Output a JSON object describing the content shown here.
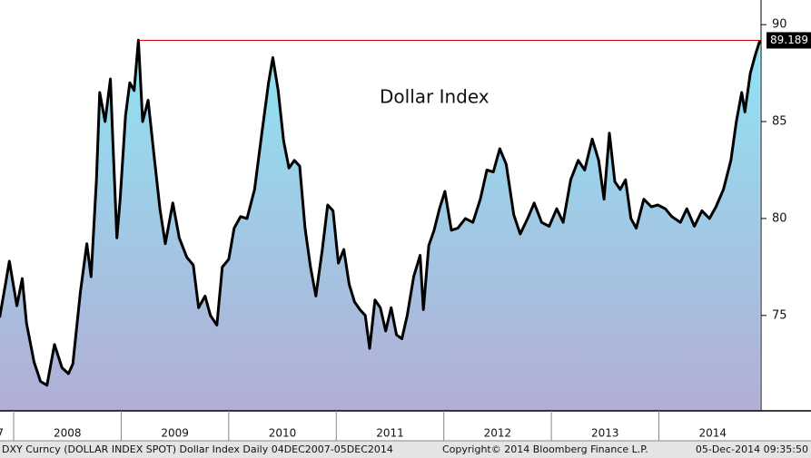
{
  "chart_data": {
    "type": "area",
    "title": "Dollar Index",
    "x": [
      2007.87,
      2007.92,
      2007.96,
      2008.03,
      2008.08,
      2008.12,
      2008.19,
      2008.25,
      2008.31,
      2008.38,
      2008.45,
      2008.51,
      2008.55,
      2008.62,
      2008.68,
      2008.72,
      2008.77,
      2008.8,
      2008.85,
      2008.9,
      2008.92,
      2008.96,
      2008.99,
      2009.04,
      2009.08,
      2009.12,
      2009.16,
      2009.2,
      2009.25,
      2009.31,
      2009.36,
      2009.41,
      2009.48,
      2009.54,
      2009.61,
      2009.67,
      2009.72,
      2009.78,
      2009.83,
      2009.89,
      2009.94,
      2010.0,
      2010.05,
      2010.11,
      2010.17,
      2010.24,
      2010.31,
      2010.37,
      2010.41,
      2010.46,
      2010.51,
      2010.56,
      2010.61,
      2010.66,
      2010.71,
      2010.76,
      2010.81,
      2010.87,
      2010.92,
      2010.97,
      2011.02,
      2011.07,
      2011.12,
      2011.17,
      2011.22,
      2011.27,
      2011.31,
      2011.36,
      2011.41,
      2011.46,
      2011.51,
      2011.56,
      2011.61,
      2011.66,
      2011.72,
      2011.78,
      2011.81,
      2011.86,
      2011.91,
      2011.96,
      2012.01,
      2012.07,
      2012.13,
      2012.2,
      2012.27,
      2012.34,
      2012.4,
      2012.46,
      2012.52,
      2012.58,
      2012.65,
      2012.71,
      2012.78,
      2012.84,
      2012.91,
      2012.98,
      2013.05,
      2013.11,
      2013.18,
      2013.25,
      2013.31,
      2013.38,
      2013.44,
      2013.49,
      2013.54,
      2013.59,
      2013.64,
      2013.69,
      2013.74,
      2013.79,
      2013.86,
      2013.93,
      2013.99,
      2014.06,
      2014.12,
      2014.2,
      2014.26,
      2014.33,
      2014.4,
      2014.47,
      2014.53,
      2014.6,
      2014.67,
      2014.72,
      2014.77,
      2014.8,
      2014.85,
      2014.9,
      2014.94
    ],
    "series": [
      {
        "name": "DXY Curncy",
        "color": "#000000",
        "values": [
          74.9,
          76.5,
          77.8,
          75.5,
          76.9,
          74.6,
          72.6,
          71.6,
          71.4,
          73.5,
          72.3,
          72.0,
          72.5,
          76.2,
          78.7,
          77.0,
          82.0,
          86.5,
          85.0,
          87.2,
          84.3,
          79.0,
          81.0,
          85.3,
          87.0,
          86.6,
          89.2,
          85.0,
          86.1,
          83.0,
          80.5,
          78.7,
          80.8,
          79.0,
          78.0,
          77.6,
          75.4,
          76.0,
          75.0,
          74.5,
          77.5,
          77.9,
          79.5,
          80.1,
          80.0,
          81.5,
          84.5,
          87.0,
          88.3,
          86.6,
          84.0,
          82.6,
          83.0,
          82.7,
          79.5,
          77.5,
          76.0,
          78.4,
          80.7,
          80.4,
          77.7,
          78.4,
          76.6,
          75.7,
          75.3,
          75.0,
          73.3,
          75.8,
          75.4,
          74.2,
          75.4,
          74.0,
          73.8,
          75.0,
          77.0,
          78.1,
          75.3,
          78.6,
          79.4,
          80.5,
          81.4,
          79.4,
          79.5,
          80.0,
          79.8,
          81.0,
          82.5,
          82.4,
          83.6,
          82.8,
          80.2,
          79.2,
          80.0,
          80.8,
          79.8,
          79.6,
          80.5,
          79.8,
          82.0,
          83.0,
          82.5,
          84.1,
          83.0,
          81.0,
          84.4,
          81.9,
          81.5,
          82.0,
          80.0,
          79.5,
          81.0,
          80.6,
          80.7,
          80.5,
          80.1,
          79.8,
          80.5,
          79.6,
          80.4,
          80.0,
          80.6,
          81.5,
          83.0,
          85.0,
          86.5,
          85.5,
          87.5,
          88.5,
          89.19
        ]
      }
    ],
    "last_value": 89.189,
    "xlim": [
      2007.873,
      2014.95
    ],
    "xticks": [
      {
        "value": 2007,
        "label": "7"
      },
      2008,
      2009,
      2010,
      2011,
      2012,
      2013,
      2014
    ],
    "ylim": [
      70.08,
      91.27
    ],
    "yticks": [
      75,
      80,
      85,
      90
    ],
    "footer": {
      "left": "DXY Curncy (DOLLAR INDEX SPOT) Dollar Index  Daily 04DEC2007-05DEC2014",
      "center": "Copyright© 2014 Bloomberg Finance L.P.",
      "right": "05-Dec-2014 09:35:50"
    }
  }
}
